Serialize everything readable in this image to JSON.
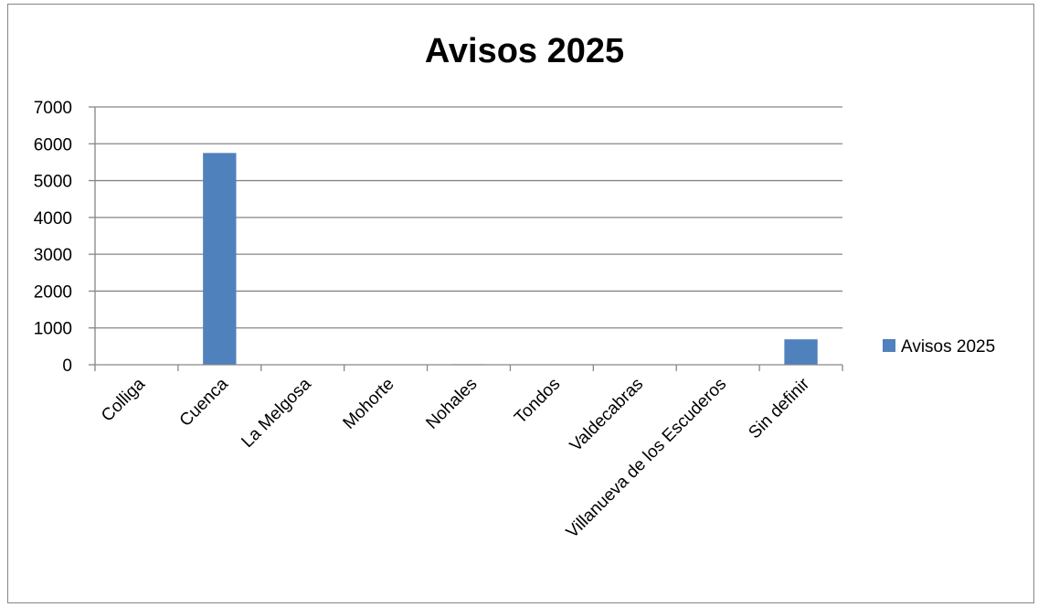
{
  "chart_data": {
    "type": "bar",
    "title": "Avisos 2025",
    "categories": [
      "Colliga",
      "Cuenca",
      "La Melgosa",
      "Mohorte",
      "Nohales",
      "Tondos",
      "Valdecabras",
      "Villanueva de los Escuderos",
      "Sin definir"
    ],
    "series": [
      {
        "name": "Avisos 2025",
        "values": [
          2,
          5750,
          3,
          2,
          15,
          2,
          4,
          3,
          690
        ],
        "color": "#4F81BD"
      }
    ],
    "ylim": [
      0,
      7000
    ],
    "yticks": [
      0,
      1000,
      2000,
      3000,
      4000,
      5000,
      6000,
      7000
    ],
    "grid": true,
    "legend": "right"
  }
}
